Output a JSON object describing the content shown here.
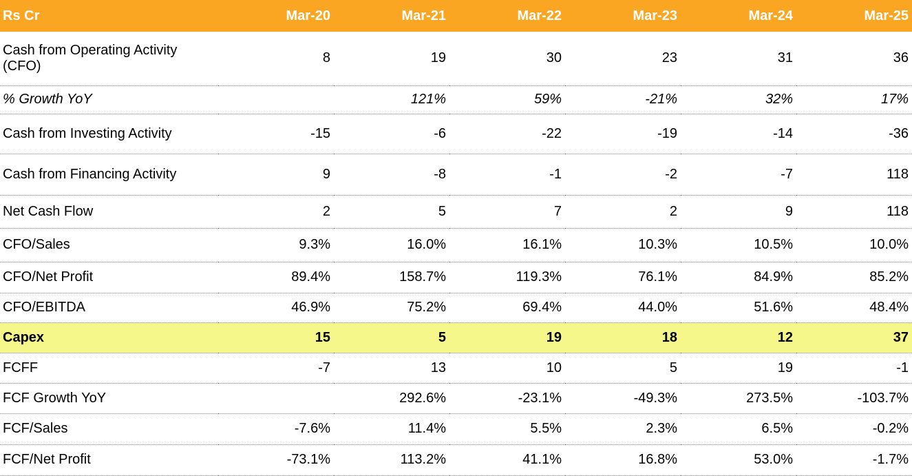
{
  "table": {
    "header": [
      "Rs Cr",
      "Mar-20",
      "Mar-21",
      "Mar-22",
      "Mar-23",
      "Mar-24",
      "Mar-25"
    ],
    "rows": [
      [
        "Cash from Operating Activity (CFO)",
        "8",
        "19",
        "30",
        "23",
        "31",
        "36"
      ],
      [
        "% Growth YoY",
        null,
        "121%",
        "59%",
        "-21%",
        "32%",
        "17%"
      ],
      [
        "Cash from Investing Activity",
        "-15",
        "-6",
        "-22",
        "-19",
        "-14",
        "-36"
      ],
      [
        "Cash from Financing Activity",
        "9",
        "-8",
        "-1",
        "-2",
        "-7",
        "118"
      ],
      [
        "Net Cash Flow",
        "2",
        "5",
        "7",
        "2",
        "9",
        "118"
      ],
      [
        "CFO/Sales",
        "9.3%",
        "16.0%",
        "16.1%",
        "10.3%",
        "10.5%",
        "10.0%"
      ],
      [
        "CFO/Net Profit",
        "89.4%",
        "158.7%",
        "119.3%",
        "76.1%",
        "84.9%",
        "85.2%"
      ],
      [
        "CFO/EBITDA",
        "46.9%",
        "75.2%",
        "69.4%",
        "44.0%",
        "51.6%",
        "48.4%"
      ],
      [
        "Capex",
        "15",
        "5",
        "19",
        "18",
        "12",
        "37"
      ],
      [
        "FCFF",
        "-7",
        "13",
        "10",
        "5",
        "19",
        "-1"
      ],
      [
        "FCF Growth YoY",
        null,
        "292.6%",
        "-23.1%",
        "-49.3%",
        "273.5%",
        "-103.7%"
      ],
      [
        "FCF/Sales",
        "-7.6%",
        "11.4%",
        "5.5%",
        "2.3%",
        "6.5%",
        "-0.2%"
      ],
      [
        "FCF/Net Profit",
        "-73.1%",
        "113.2%",
        "41.1%",
        "16.8%",
        "53.0%",
        "-1.7%"
      ]
    ]
  }
}
